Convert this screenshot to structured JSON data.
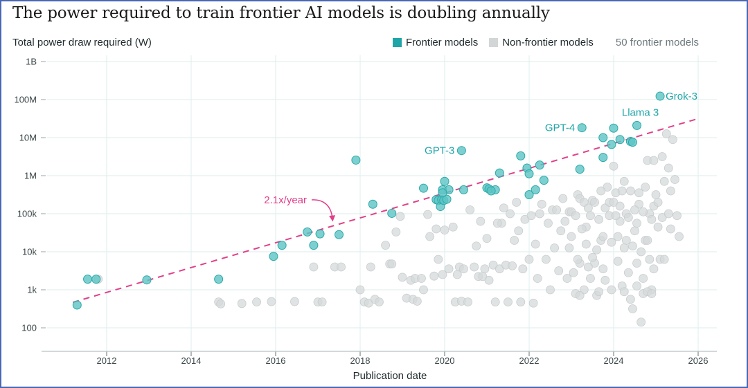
{
  "title": "The power required to train frontier AI models is doubling annually",
  "legend": {
    "frontier_label": "Frontier models",
    "nonfrontier_label": "Non-frontier models",
    "count_label": "50 frontier models"
  },
  "colors": {
    "frontier": "#5ec4c4",
    "frontier_stroke": "#2aa9a9",
    "nonfrontier": "#d6d9da",
    "trend": "#e0408a",
    "grid": "#e3efef",
    "label": "#1fa5a8"
  },
  "chart_data": {
    "type": "scatter",
    "title": "The power required to train frontier AI models is doubling annually",
    "xlabel": "Publication date",
    "ylabel": "Total power draw required (W)",
    "x_range": [
      2010.4,
      2026.8
    ],
    "y_scale": "log",
    "y_range_log10": [
      1.45,
      9.15
    ],
    "x_ticks": [
      2012,
      2014,
      2016,
      2018,
      2020,
      2022,
      2024,
      2026
    ],
    "x_tick_labels": [
      "2012",
      "2014",
      "2016",
      "2018",
      "2020",
      "2022",
      "2024",
      "2026"
    ],
    "y_ticks_log10": [
      2,
      3,
      4,
      5,
      6,
      7,
      8,
      9
    ],
    "y_tick_labels": [
      "100",
      "1k",
      "10k",
      "100k",
      "1M",
      "10M",
      "100M",
      "1B"
    ],
    "grid": true,
    "legend_position": "top-right",
    "trend": {
      "label": "2.1x/year",
      "x": [
        2011.2,
        2026.0
      ],
      "log10_y": [
        2.67,
        7.5
      ]
    },
    "annotations": [
      {
        "text": "GPT-3",
        "x": 2020.4,
        "log10_y": 6.66,
        "side": "left"
      },
      {
        "text": "GPT-4",
        "x": 2023.25,
        "log10_y": 7.26,
        "side": "left"
      },
      {
        "text": "Llama 3",
        "x": 2024.55,
        "log10_y": 7.32,
        "side": "above"
      },
      {
        "text": "Grok-3",
        "x": 2025.1,
        "log10_y": 8.09,
        "side": "right"
      }
    ],
    "series": [
      {
        "name": "Frontier models",
        "points": [
          [
            2011.3,
            2.6
          ],
          [
            2011.55,
            3.28
          ],
          [
            2011.75,
            3.28
          ],
          [
            2012.95,
            3.26
          ],
          [
            2014.65,
            3.28
          ],
          [
            2015.95,
            3.88
          ],
          [
            2016.15,
            4.17
          ],
          [
            2016.75,
            4.52
          ],
          [
            2016.9,
            4.17
          ],
          [
            2017.05,
            4.47
          ],
          [
            2017.5,
            4.45
          ],
          [
            2017.9,
            6.41
          ],
          [
            2018.3,
            5.25
          ],
          [
            2018.75,
            5.01
          ],
          [
            2019.5,
            5.67
          ],
          [
            2019.8,
            5.37
          ],
          [
            2019.85,
            5.35
          ],
          [
            2019.9,
            5.19
          ],
          [
            2019.93,
            5.37
          ],
          [
            2019.95,
            5.63
          ],
          [
            2019.98,
            5.35
          ],
          [
            2020.0,
            5.85
          ],
          [
            2020.05,
            5.38
          ],
          [
            2020.1,
            5.63
          ],
          [
            2020.4,
            6.66
          ],
          [
            2020.45,
            5.63
          ],
          [
            2021.0,
            5.68
          ],
          [
            2021.05,
            5.65
          ],
          [
            2021.2,
            5.63
          ],
          [
            2021.3,
            6.07
          ],
          [
            2021.8,
            6.52
          ],
          [
            2021.95,
            6.2
          ],
          [
            2022.0,
            6.05
          ],
          [
            2022.0,
            5.5
          ],
          [
            2022.15,
            5.63
          ],
          [
            2022.25,
            6.28
          ],
          [
            2022.35,
            5.88
          ],
          [
            2023.2,
            6.17
          ],
          [
            2023.25,
            7.26
          ],
          [
            2023.75,
            6.48
          ],
          [
            2023.75,
            7.0
          ],
          [
            2023.95,
            6.82
          ],
          [
            2024.0,
            7.25
          ],
          [
            2024.15,
            6.95
          ],
          [
            2024.4,
            6.9
          ],
          [
            2024.45,
            6.88
          ],
          [
            2024.55,
            7.32
          ],
          [
            2025.1,
            8.09
          ],
          [
            2019.95,
            5.55
          ],
          [
            2021.1,
            5.6
          ]
        ]
      },
      {
        "name": "Non-frontier models",
        "points": [
          [
            2011.8,
            3.28
          ],
          [
            2014.65,
            2.68
          ],
          [
            2014.7,
            2.63
          ],
          [
            2015.2,
            2.64
          ],
          [
            2015.55,
            2.68
          ],
          [
            2015.9,
            2.69
          ],
          [
            2016.45,
            2.69
          ],
          [
            2016.9,
            3.6
          ],
          [
            2017.0,
            2.68
          ],
          [
            2017.1,
            2.68
          ],
          [
            2017.4,
            3.6
          ],
          [
            2017.55,
            3.6
          ],
          [
            2018.0,
            3.0
          ],
          [
            2018.1,
            2.68
          ],
          [
            2018.2,
            2.65
          ],
          [
            2018.25,
            3.6
          ],
          [
            2018.35,
            2.75
          ],
          [
            2018.45,
            2.68
          ],
          [
            2018.6,
            4.17
          ],
          [
            2018.7,
            3.68
          ],
          [
            2018.75,
            3.68
          ],
          [
            2018.85,
            4.52
          ],
          [
            2018.95,
            4.93
          ],
          [
            2019.0,
            3.33
          ],
          [
            2019.1,
            2.78
          ],
          [
            2019.2,
            3.25
          ],
          [
            2019.25,
            2.75
          ],
          [
            2019.3,
            3.3
          ],
          [
            2019.35,
            2.7
          ],
          [
            2019.45,
            3.3
          ],
          [
            2019.5,
            3.0
          ],
          [
            2019.75,
            3.36
          ],
          [
            2019.8,
            4.6
          ],
          [
            2019.85,
            3.8
          ],
          [
            2019.95,
            3.4
          ],
          [
            2020.0,
            4.57
          ],
          [
            2020.1,
            3.55
          ],
          [
            2020.25,
            2.68
          ],
          [
            2020.3,
            3.4
          ],
          [
            2020.35,
            3.6
          ],
          [
            2020.4,
            2.7
          ],
          [
            2020.45,
            3.55
          ],
          [
            2020.55,
            2.68
          ],
          [
            2020.7,
            3.6
          ],
          [
            2020.8,
            3.35
          ],
          [
            2020.85,
            4.8
          ],
          [
            2020.9,
            3.35
          ],
          [
            2020.95,
            3.55
          ],
          [
            2021.05,
            3.25
          ],
          [
            2021.15,
            3.65
          ],
          [
            2021.2,
            2.68
          ],
          [
            2021.3,
            3.55
          ],
          [
            2021.35,
            4.75
          ],
          [
            2021.45,
            3.65
          ],
          [
            2021.5,
            2.68
          ],
          [
            2021.6,
            3.63
          ],
          [
            2021.7,
            5.3
          ],
          [
            2021.8,
            2.68
          ],
          [
            2021.85,
            3.55
          ],
          [
            2021.9,
            4.85
          ],
          [
            2022.0,
            3.8
          ],
          [
            2022.1,
            2.65
          ],
          [
            2022.2,
            3.3
          ],
          [
            2022.3,
            5.25
          ],
          [
            2022.4,
            3.8
          ],
          [
            2022.5,
            3.0
          ],
          [
            2022.6,
            4.1
          ],
          [
            2022.7,
            3.5
          ],
          [
            2022.75,
            4.55
          ],
          [
            2022.8,
            5.4
          ],
          [
            2022.9,
            3.3
          ],
          [
            2023.0,
            4.4
          ],
          [
            2023.05,
            3.45
          ],
          [
            2023.1,
            2.9
          ],
          [
            2023.15,
            5.5
          ],
          [
            2023.2,
            3.7
          ],
          [
            2023.3,
            3.0
          ],
          [
            2023.35,
            4.65
          ],
          [
            2023.45,
            3.3
          ],
          [
            2023.5,
            5.35
          ],
          [
            2023.55,
            3.7
          ],
          [
            2023.6,
            2.85
          ],
          [
            2023.7,
            4.3
          ],
          [
            2023.75,
            3.55
          ],
          [
            2023.8,
            3.25
          ],
          [
            2023.85,
            5.7
          ],
          [
            2023.9,
            4.95
          ],
          [
            2023.95,
            3.0
          ],
          [
            2024.0,
            6.25
          ],
          [
            2024.05,
            5.55
          ],
          [
            2024.1,
            3.75
          ],
          [
            2024.15,
            4.8
          ],
          [
            2024.2,
            3.1
          ],
          [
            2024.25,
            5.85
          ],
          [
            2024.3,
            4.3
          ],
          [
            2024.35,
            3.45
          ],
          [
            2024.4,
            5.6
          ],
          [
            2024.45,
            2.5
          ],
          [
            2024.5,
            4.55
          ],
          [
            2024.55,
            3.7
          ],
          [
            2024.6,
            5.25
          ],
          [
            2024.65,
            2.15
          ],
          [
            2024.7,
            3.3
          ],
          [
            2024.75,
            4.3
          ],
          [
            2024.8,
            6.4
          ],
          [
            2024.85,
            5.0
          ],
          [
            2024.9,
            3.0
          ],
          [
            2024.95,
            6.4
          ],
          [
            2025.0,
            5.5
          ],
          [
            2025.05,
            4.65
          ],
          [
            2025.1,
            3.8
          ],
          [
            2025.15,
            6.5
          ],
          [
            2025.2,
            5.85
          ],
          [
            2025.25,
            7.1
          ],
          [
            2025.3,
            6.2
          ],
          [
            2025.35,
            4.6
          ],
          [
            2025.4,
            6.95
          ],
          [
            2025.45,
            5.9
          ],
          [
            2025.5,
            4.95
          ],
          [
            2025.55,
            4.4
          ],
          [
            2019.6,
            4.98
          ],
          [
            2019.65,
            4.4
          ],
          [
            2020.2,
            4.65
          ],
          [
            2020.6,
            5.1
          ],
          [
            2020.75,
            4.15
          ],
          [
            2021.0,
            4.35
          ],
          [
            2021.25,
            4.75
          ],
          [
            2021.4,
            5.15
          ],
          [
            2021.55,
            5.0
          ],
          [
            2021.65,
            4.3
          ],
          [
            2021.75,
            4.55
          ],
          [
            2022.05,
            4.95
          ],
          [
            2022.15,
            4.2
          ],
          [
            2022.25,
            5.0
          ],
          [
            2022.45,
            4.75
          ],
          [
            2022.55,
            5.1
          ],
          [
            2022.65,
            5.1
          ],
          [
            2022.85,
            4.8
          ],
          [
            2022.95,
            5.05
          ],
          [
            2023.0,
            5.05
          ],
          [
            2023.1,
            4.95
          ],
          [
            2023.2,
            5.4
          ],
          [
            2023.25,
            4.6
          ],
          [
            2023.3,
            5.3
          ],
          [
            2023.4,
            5.15
          ],
          [
            2023.45,
            4.95
          ],
          [
            2023.55,
            5.3
          ],
          [
            2023.65,
            4.85
          ],
          [
            2023.7,
            5.6
          ],
          [
            2023.8,
            5.15
          ],
          [
            2023.9,
            5.3
          ],
          [
            2024.0,
            5.3
          ],
          [
            2024.05,
            4.95
          ],
          [
            2024.15,
            5.2
          ],
          [
            2024.2,
            5.6
          ],
          [
            2024.3,
            5.0
          ],
          [
            2024.35,
            4.9
          ],
          [
            2024.5,
            5.1
          ],
          [
            2024.55,
            4.75
          ],
          [
            2024.6,
            5.55
          ],
          [
            2024.7,
            5.05
          ],
          [
            2024.75,
            5.7
          ],
          [
            2024.9,
            4.85
          ],
          [
            2024.95,
            5.2
          ],
          [
            2025.05,
            5.3
          ],
          [
            2025.15,
            4.9
          ],
          [
            2025.3,
            5.0
          ],
          [
            2025.35,
            5.6
          ],
          [
            2023.35,
            4.2
          ],
          [
            2023.6,
            4.05
          ],
          [
            2023.75,
            4.4
          ],
          [
            2023.95,
            4.25
          ],
          [
            2024.1,
            4.4
          ],
          [
            2024.25,
            4.1
          ],
          [
            2024.45,
            4.15
          ],
          [
            2024.65,
            4.0
          ],
          [
            2024.8,
            4.3
          ],
          [
            2024.85,
            3.8
          ],
          [
            2024.95,
            3.55
          ],
          [
            2025.2,
            3.8
          ],
          [
            2022.95,
            4.1
          ],
          [
            2023.15,
            3.8
          ],
          [
            2023.4,
            3.6
          ],
          [
            2023.5,
            3.85
          ],
          [
            2024.55,
            3.1
          ],
          [
            2024.7,
            2.9
          ],
          [
            2024.8,
            2.95
          ],
          [
            2024.9,
            2.9
          ],
          [
            2023.65,
            2.95
          ],
          [
            2024.25,
            2.95
          ],
          [
            2024.4,
            2.75
          ],
          [
            2023.2,
            2.85
          ]
        ]
      }
    ]
  }
}
